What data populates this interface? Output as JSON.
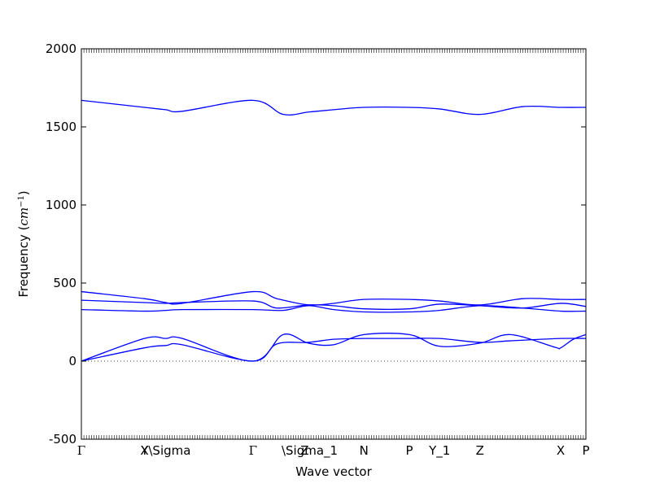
{
  "chart_data": {
    "type": "line",
    "title": "",
    "xlabel": "Wave vector",
    "ylabel": "Frequency ($cm^{-1}$)",
    "ylabel_parts": {
      "prefix": "Frequency (",
      "unit": "cm",
      "exponent": "−1",
      "suffix": ")"
    },
    "ylim": [
      -500,
      2000
    ],
    "yticks": [
      -500,
      0,
      500,
      1000,
      1500,
      2000
    ],
    "xlim": [
      0,
      4.0
    ],
    "high_symmetry_points": [
      {
        "label": "Γ",
        "x": 0.0
      },
      {
        "label": "X",
        "x": 0.5
      },
      {
        "label": "Y\\Sigma",
        "x": 0.67
      },
      {
        "label": "Γ",
        "x": 1.36
      },
      {
        "label": "Z",
        "x": 1.77
      },
      {
        "label": "\\Sigma_1",
        "x": 1.81
      },
      {
        "label": "N",
        "x": 2.24
      },
      {
        "label": "P",
        "x": 2.6
      },
      {
        "label": "Y_1",
        "x": 2.84
      },
      {
        "label": "Z",
        "x": 3.16
      },
      {
        "label": "X",
        "x": 3.8
      },
      {
        "label": "P",
        "x": 4.0
      }
    ],
    "zero_line": true,
    "series_color": "#0000ff",
    "series": [
      {
        "x": [
          0,
          0.5,
          0.67,
          0.8,
          1.36,
          1.55,
          1.8,
          2.0,
          2.24,
          2.6,
          2.84,
          3.16,
          3.4,
          3.8,
          4.0
        ],
        "values": [
          0,
          85,
          100,
          105,
          0,
          110,
          120,
          140,
          145,
          145,
          145,
          120,
          130,
          145,
          145
        ]
      },
      {
        "x": [
          0,
          0.5,
          0.67,
          0.8,
          1.36,
          1.6,
          1.8,
          2.0,
          2.24,
          2.6,
          2.84,
          3.16,
          3.4,
          3.75,
          3.8,
          3.9,
          4.0
        ],
        "values": [
          0,
          145,
          145,
          145,
          0,
          170,
          115,
          105,
          170,
          170,
          95,
          115,
          170,
          90,
          85,
          140,
          170
        ]
      },
      {
        "x": [
          0,
          0.5,
          0.67,
          0.8,
          1.36,
          1.6,
          1.8,
          2.0,
          2.24,
          2.6,
          2.84,
          3.16,
          3.5,
          3.8,
          4.0
        ],
        "values": [
          330,
          320,
          325,
          330,
          330,
          325,
          355,
          330,
          315,
          315,
          325,
          355,
          340,
          320,
          320
        ]
      },
      {
        "x": [
          0,
          0.5,
          0.67,
          0.8,
          1.36,
          1.55,
          1.8,
          2.0,
          2.24,
          2.6,
          2.84,
          3.16,
          3.5,
          3.8,
          4.0
        ],
        "values": [
          390,
          375,
          370,
          375,
          385,
          340,
          360,
          355,
          335,
          335,
          365,
          355,
          340,
          370,
          350
        ]
      },
      {
        "x": [
          0,
          0.5,
          0.67,
          0.8,
          1.36,
          1.55,
          1.8,
          2.0,
          2.24,
          2.6,
          2.84,
          3.16,
          3.5,
          3.8,
          4.0
        ],
        "values": [
          445,
          400,
          375,
          370,
          445,
          400,
          360,
          370,
          395,
          395,
          385,
          360,
          400,
          395,
          395
        ]
      },
      {
        "x": [
          0,
          0.5,
          0.67,
          0.8,
          1.36,
          1.6,
          1.8,
          2.0,
          2.24,
          2.6,
          2.84,
          3.16,
          3.5,
          3.8,
          4.0
        ],
        "values": [
          1670,
          1625,
          1610,
          1600,
          1670,
          1580,
          1595,
          1610,
          1625,
          1625,
          1615,
          1580,
          1630,
          1625,
          1625
        ]
      }
    ]
  }
}
